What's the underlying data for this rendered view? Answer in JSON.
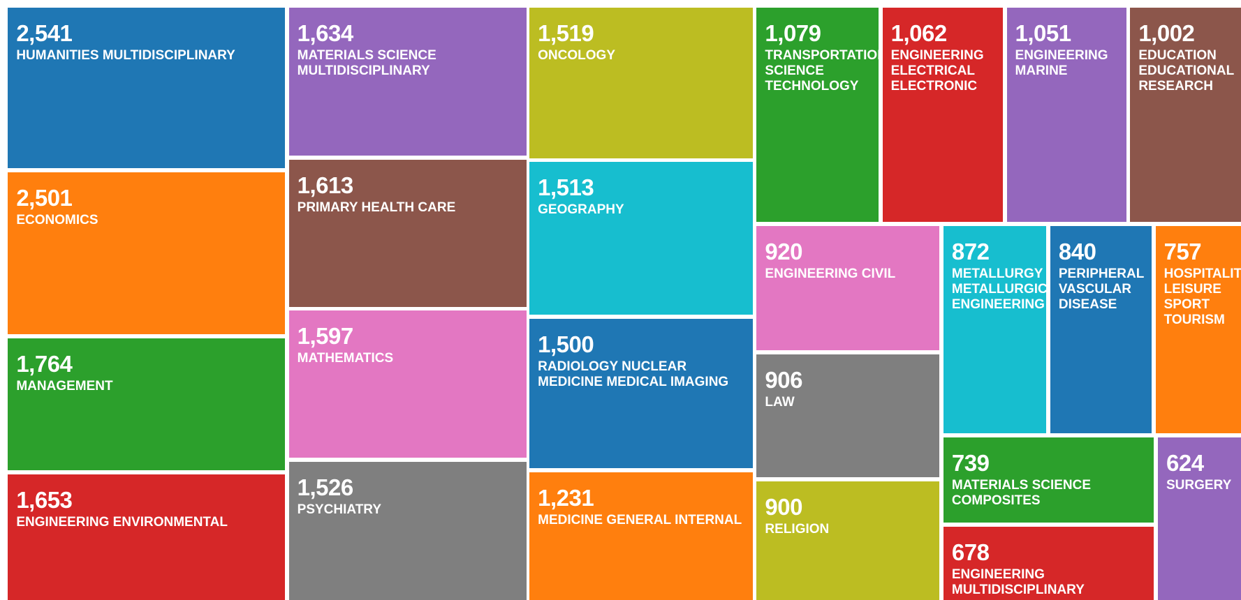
{
  "chart_data": {
    "type": "treemap",
    "categories": [
      "HUMANITIES MULTIDISCIPLINARY",
      "ECONOMICS",
      "MANAGEMENT",
      "ENGINEERING ENVIRONMENTAL",
      "MATERIALS SCIENCE MULTIDISCIPLINARY",
      "PRIMARY HEALTH CARE",
      "MATHEMATICS",
      "PSYCHIATRY",
      "ONCOLOGY",
      "GEOGRAPHY",
      "RADIOLOGY NUCLEAR MEDICINE MEDICAL IMAGING",
      "MEDICINE GENERAL INTERNAL",
      "TRANSPORTATION SCIENCE TECHNOLOGY",
      "ENGINEERING ELECTRICAL ELECTRONIC",
      "ENGINEERING MARINE",
      "EDUCATION EDUCATIONAL RESEARCH",
      "ENGINEERING CIVIL",
      "LAW",
      "RELIGION",
      "METALLURGY METALLURGICAL ENGINEERING",
      "PERIPHERAL VASCULAR DISEASE",
      "HOSPITALITY LEISURE SPORT TOURISM",
      "MATERIALS SCIENCE COMPOSITES",
      "ENGINEERING MULTIDISCIPLINARY",
      "SURGERY"
    ],
    "values": [
      2541,
      2501,
      1764,
      1653,
      1634,
      1613,
      1597,
      1526,
      1519,
      1513,
      1500,
      1231,
      1079,
      1062,
      1051,
      1002,
      920,
      906,
      900,
      872,
      840,
      757,
      739,
      678,
      624
    ],
    "value_labels": [
      "2,541",
      "2,501",
      "1,764",
      "1,653",
      "1,634",
      "1,613",
      "1,597",
      "1,526",
      "1,519",
      "1,513",
      "1,500",
      "1,231",
      "1,079",
      "1,062",
      "1,051",
      "1,002",
      "920",
      "906",
      "900",
      "872",
      "840",
      "757",
      "739",
      "678",
      "624"
    ],
    "colors": [
      "#1f77b4",
      "#ff7f0e",
      "#2ca02c",
      "#d62728",
      "#9467bd",
      "#8c564b",
      "#e377c2",
      "#7f7f7f",
      "#bcbd22",
      "#17becf",
      "#1f77b4",
      "#ff7f0e",
      "#2ca02c",
      "#d62728",
      "#9467bd",
      "#8c564b",
      "#e377c2",
      "#7f7f7f",
      "#bcbd22",
      "#17becf",
      "#1f77b4",
      "#ff7f0e",
      "#2ca02c",
      "#d62728",
      "#9467bd"
    ]
  }
}
